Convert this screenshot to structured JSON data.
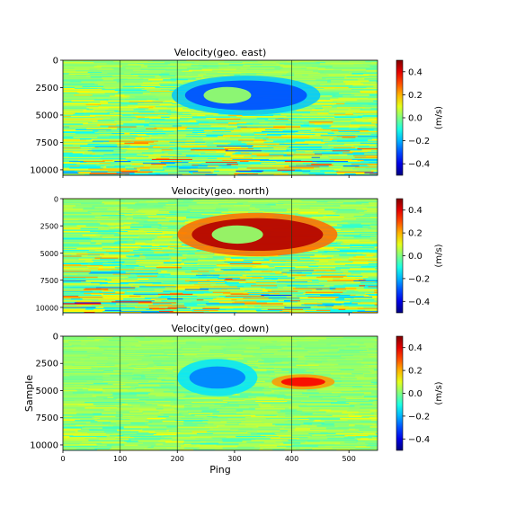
{
  "chart_data": [
    {
      "type": "heatmap",
      "title": "Velocity(geo. east)",
      "xlabel": "",
      "ylabel": "",
      "xlim": [
        0,
        550
      ],
      "ylim": [
        0,
        10500
      ],
      "x_ticks": [
        0,
        100,
        200,
        300,
        400,
        500
      ],
      "y_ticks": [
        0,
        2500,
        5000,
        7500,
        10000
      ],
      "y_tick_labels": [
        "0",
        "2500",
        "5000",
        "7500",
        "10000"
      ],
      "x_tick_labels": [],
      "vertical_lines_x": [
        100,
        200,
        400
      ],
      "colorbar": {
        "label": "(m/s)",
        "range": [
          -0.5,
          0.5
        ],
        "ticks": [
          0.4,
          0.2,
          0.0,
          -0.2,
          -0.4
        ],
        "tick_labels": [
          "0.4",
          "0.2",
          "0.0",
          "−0.2",
          "−0.4"
        ],
        "colormap": "jet"
      },
      "anomalies": [
        {
          "center_ping": 320,
          "center_sample": 3200,
          "value": -0.3,
          "rx_pings": 130,
          "ry_samples": 1800,
          "shape": "ring"
        }
      ]
    },
    {
      "type": "heatmap",
      "title": "Velocity(geo. north)",
      "xlabel": "",
      "ylabel": "",
      "xlim": [
        0,
        550
      ],
      "ylim": [
        0,
        10500
      ],
      "x_ticks": [
        0,
        100,
        200,
        300,
        400,
        500
      ],
      "y_ticks": [
        0,
        2500,
        5000,
        7500,
        10000
      ],
      "y_tick_labels": [
        "0",
        "2500",
        "5000",
        "7500",
        "10000"
      ],
      "x_tick_labels": [],
      "vertical_lines_x": [
        100,
        200,
        400
      ],
      "colorbar": {
        "label": "(m/s)",
        "range": [
          -0.5,
          0.5
        ],
        "ticks": [
          0.4,
          0.2,
          0.0,
          -0.2,
          -0.4
        ],
        "tick_labels": [
          "0.4",
          "0.2",
          "0.0",
          "−0.2",
          "−0.4"
        ],
        "colormap": "jet"
      },
      "anomalies": [
        {
          "center_ping": 340,
          "center_sample": 3300,
          "value": 0.45,
          "rx_pings": 140,
          "ry_samples": 2000,
          "shape": "ring"
        }
      ]
    },
    {
      "type": "heatmap",
      "title": "Velocity(geo. down)",
      "xlabel": "Ping",
      "ylabel": "Sample",
      "xlim": [
        0,
        550
      ],
      "ylim": [
        0,
        10500
      ],
      "x_ticks": [
        0,
        100,
        200,
        300,
        400,
        500
      ],
      "x_tick_labels": [
        "0",
        "100",
        "200",
        "300",
        "400",
        "500"
      ],
      "y_ticks": [
        0,
        2500,
        5000,
        7500,
        10000
      ],
      "y_tick_labels": [
        "0",
        "2500",
        "5000",
        "7500",
        "10000"
      ],
      "vertical_lines_x": [
        100,
        200,
        400
      ],
      "colorbar": {
        "label": "(m/s)",
        "range": [
          -0.5,
          0.5
        ],
        "ticks": [
          0.4,
          0.2,
          0.0,
          -0.2,
          -0.4
        ],
        "tick_labels": [
          "0.4",
          "0.2",
          "0.0",
          "−0.2",
          "−0.4"
        ],
        "colormap": "jet"
      },
      "anomalies": [
        {
          "center_ping": 270,
          "center_sample": 3800,
          "value": -0.25,
          "rx_pings": 70,
          "ry_samples": 1700,
          "shape": "blob"
        },
        {
          "center_ping": 420,
          "center_sample": 4200,
          "value": 0.38,
          "rx_pings": 55,
          "ry_samples": 700,
          "shape": "blob"
        }
      ]
    }
  ]
}
